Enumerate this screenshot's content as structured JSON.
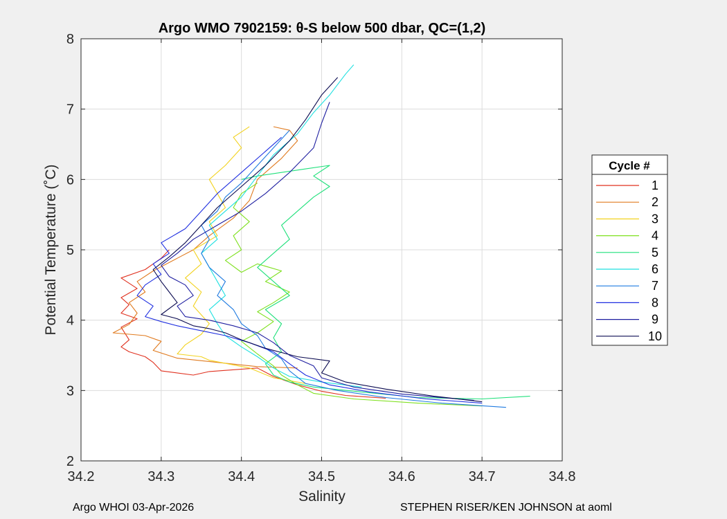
{
  "chart_data": {
    "type": "line",
    "title": "Argo WMO 7902159: θ-S below 500 dbar,  QC=(1,2)",
    "xlabel": "Salinity",
    "ylabel": "Potential Temperature (˚C)",
    "xlim": [
      34.2,
      34.8
    ],
    "ylim": [
      2,
      8
    ],
    "xticks": [
      "34.2",
      "34.3",
      "34.4",
      "34.5",
      "34.6",
      "34.7",
      "34.8"
    ],
    "yticks": [
      "2",
      "3",
      "4",
      "5",
      "6",
      "7",
      "8"
    ],
    "grid": true,
    "legend": {
      "title": "Cycle #",
      "placement": "right"
    },
    "series": [
      {
        "name": "1",
        "color": "#e0301e",
        "points": [
          [
            34.58,
            2.89
          ],
          [
            34.53,
            2.93
          ],
          [
            34.5,
            2.99
          ],
          [
            34.47,
            3.08
          ],
          [
            34.44,
            3.2
          ],
          [
            34.42,
            3.32
          ],
          [
            34.36,
            3.27
          ],
          [
            34.34,
            3.22
          ],
          [
            34.3,
            3.28
          ],
          [
            34.29,
            3.4
          ],
          [
            34.28,
            3.48
          ],
          [
            34.26,
            3.55
          ],
          [
            34.25,
            3.62
          ],
          [
            34.26,
            3.72
          ],
          [
            34.25,
            3.9
          ],
          [
            34.27,
            4.02
          ],
          [
            34.25,
            4.1
          ],
          [
            34.26,
            4.22
          ],
          [
            34.25,
            4.32
          ],
          [
            34.27,
            4.45
          ],
          [
            34.25,
            4.6
          ],
          [
            34.28,
            4.72
          ],
          [
            34.3,
            4.88
          ],
          [
            34.31,
            5.0
          ]
        ]
      },
      {
        "name": "2",
        "color": "#e07a1e",
        "points": [
          [
            34.47,
            3.32
          ],
          [
            34.42,
            3.34
          ],
          [
            34.37,
            3.4
          ],
          [
            34.32,
            3.46
          ],
          [
            34.29,
            3.57
          ],
          [
            34.3,
            3.7
          ],
          [
            34.28,
            3.78
          ],
          [
            34.24,
            3.82
          ],
          [
            34.26,
            3.94
          ],
          [
            34.27,
            4.1
          ],
          [
            34.26,
            4.25
          ],
          [
            34.28,
            4.4
          ],
          [
            34.27,
            4.55
          ],
          [
            34.29,
            4.7
          ],
          [
            34.32,
            4.88
          ],
          [
            34.34,
            5.0
          ],
          [
            34.36,
            5.2
          ],
          [
            34.39,
            5.45
          ],
          [
            34.41,
            5.7
          ],
          [
            34.42,
            6.0
          ],
          [
            34.45,
            6.3
          ],
          [
            34.47,
            6.55
          ],
          [
            34.46,
            6.7
          ],
          [
            34.44,
            6.75
          ]
        ]
      },
      {
        "name": "3",
        "color": "#f2d21e",
        "points": [
          [
            34.48,
            3.1
          ],
          [
            34.44,
            3.18
          ],
          [
            34.41,
            3.32
          ],
          [
            34.36,
            3.43
          ],
          [
            34.35,
            3.48
          ],
          [
            34.32,
            3.52
          ],
          [
            34.33,
            3.65
          ],
          [
            34.35,
            3.8
          ],
          [
            34.36,
            3.95
          ],
          [
            34.34,
            4.2
          ],
          [
            34.35,
            4.4
          ],
          [
            34.33,
            4.6
          ],
          [
            34.35,
            4.8
          ],
          [
            34.34,
            5.0
          ],
          [
            34.37,
            5.2
          ],
          [
            34.36,
            5.4
          ],
          [
            34.38,
            5.6
          ],
          [
            34.37,
            5.8
          ],
          [
            34.36,
            6.0
          ],
          [
            34.38,
            6.2
          ],
          [
            34.4,
            6.45
          ],
          [
            34.39,
            6.6
          ],
          [
            34.41,
            6.75
          ]
        ]
      },
      {
        "name": "4",
        "color": "#7ee01e",
        "points": [
          [
            34.7,
            2.78
          ],
          [
            34.62,
            2.82
          ],
          [
            34.54,
            2.88
          ],
          [
            34.49,
            2.96
          ],
          [
            34.47,
            3.08
          ],
          [
            34.45,
            3.22
          ],
          [
            34.44,
            3.35
          ],
          [
            34.42,
            3.52
          ],
          [
            34.4,
            3.7
          ],
          [
            34.42,
            3.82
          ],
          [
            34.44,
            3.98
          ],
          [
            34.42,
            4.12
          ],
          [
            34.44,
            4.25
          ],
          [
            34.46,
            4.4
          ],
          [
            34.43,
            4.55
          ],
          [
            34.45,
            4.7
          ],
          [
            34.42,
            4.8
          ],
          [
            34.4,
            4.68
          ],
          [
            34.38,
            4.85
          ],
          [
            34.4,
            5.0
          ],
          [
            34.39,
            5.2
          ],
          [
            34.41,
            5.4
          ],
          [
            34.39,
            5.6
          ],
          [
            34.4,
            5.8
          ],
          [
            34.42,
            5.95
          ]
        ]
      },
      {
        "name": "5",
        "color": "#1ee07a",
        "points": [
          [
            34.76,
            2.92
          ],
          [
            34.7,
            2.88
          ],
          [
            34.62,
            2.9
          ],
          [
            34.55,
            2.98
          ],
          [
            34.49,
            3.05
          ],
          [
            34.46,
            3.12
          ],
          [
            34.44,
            3.22
          ],
          [
            34.43,
            3.38
          ],
          [
            34.45,
            3.55
          ],
          [
            34.44,
            3.75
          ],
          [
            34.45,
            3.95
          ],
          [
            34.43,
            4.15
          ],
          [
            34.46,
            4.35
          ],
          [
            34.44,
            4.55
          ],
          [
            34.42,
            4.75
          ],
          [
            34.44,
            4.95
          ],
          [
            34.46,
            5.15
          ],
          [
            34.45,
            5.35
          ],
          [
            34.47,
            5.55
          ],
          [
            34.49,
            5.75
          ],
          [
            34.51,
            5.9
          ],
          [
            34.49,
            6.05
          ],
          [
            34.51,
            6.2
          ],
          [
            34.48,
            6.15
          ],
          [
            34.45,
            6.1
          ],
          [
            34.42,
            6.05
          ],
          [
            34.4,
            6.0
          ]
        ]
      },
      {
        "name": "6",
        "color": "#1ee0e0",
        "points": [
          [
            34.55,
            3.05
          ],
          [
            34.5,
            3.12
          ],
          [
            34.46,
            3.2
          ],
          [
            34.44,
            3.32
          ],
          [
            34.42,
            3.48
          ],
          [
            34.4,
            3.62
          ],
          [
            34.38,
            3.78
          ],
          [
            34.37,
            3.95
          ],
          [
            34.36,
            4.15
          ],
          [
            34.38,
            4.35
          ],
          [
            34.37,
            4.55
          ],
          [
            34.36,
            4.75
          ],
          [
            34.35,
            4.95
          ],
          [
            34.37,
            5.15
          ],
          [
            34.36,
            5.35
          ],
          [
            34.38,
            5.55
          ],
          [
            34.4,
            5.75
          ],
          [
            34.42,
            6.05
          ],
          [
            34.44,
            6.35
          ],
          [
            34.47,
            6.65
          ],
          [
            34.49,
            6.95
          ],
          [
            34.51,
            7.2
          ],
          [
            34.53,
            7.5
          ],
          [
            34.54,
            7.63
          ]
        ]
      },
      {
        "name": "7",
        "color": "#1e7ae0",
        "points": [
          [
            34.73,
            2.76
          ],
          [
            34.65,
            2.82
          ],
          [
            34.58,
            2.9
          ],
          [
            34.52,
            3.0
          ],
          [
            34.48,
            3.1
          ],
          [
            34.46,
            3.28
          ],
          [
            34.45,
            3.45
          ],
          [
            34.43,
            3.6
          ],
          [
            34.42,
            3.78
          ],
          [
            34.4,
            3.95
          ],
          [
            34.39,
            4.15
          ],
          [
            34.37,
            4.35
          ],
          [
            34.38,
            4.55
          ],
          [
            34.36,
            4.75
          ],
          [
            34.35,
            4.95
          ],
          [
            34.36,
            5.15
          ],
          [
            34.35,
            5.35
          ],
          [
            34.37,
            5.55
          ],
          [
            34.38,
            5.75
          ],
          [
            34.4,
            5.95
          ],
          [
            34.42,
            6.2
          ],
          [
            34.44,
            6.45
          ],
          [
            34.46,
            6.7
          ]
        ]
      },
      {
        "name": "8",
        "color": "#1e2ee0",
        "points": [
          [
            34.7,
            2.82
          ],
          [
            34.63,
            2.88
          ],
          [
            34.56,
            2.98
          ],
          [
            34.51,
            3.08
          ],
          [
            34.48,
            3.22
          ],
          [
            34.46,
            3.38
          ],
          [
            34.44,
            3.55
          ],
          [
            34.41,
            3.68
          ],
          [
            34.38,
            3.78
          ],
          [
            34.35,
            3.85
          ],
          [
            34.32,
            3.92
          ],
          [
            34.3,
            3.98
          ],
          [
            34.28,
            4.05
          ],
          [
            34.29,
            4.2
          ],
          [
            34.27,
            4.35
          ],
          [
            34.28,
            4.5
          ],
          [
            34.3,
            4.65
          ],
          [
            34.29,
            4.8
          ],
          [
            34.31,
            4.95
          ],
          [
            34.3,
            5.1
          ],
          [
            34.33,
            5.3
          ],
          [
            34.35,
            5.55
          ],
          [
            34.37,
            5.8
          ],
          [
            34.4,
            6.1
          ],
          [
            34.43,
            6.4
          ],
          [
            34.45,
            6.6
          ]
        ]
      },
      {
        "name": "9",
        "color": "#1e1ea0",
        "points": [
          [
            34.69,
            2.86
          ],
          [
            34.6,
            2.95
          ],
          [
            34.54,
            3.05
          ],
          [
            34.5,
            3.18
          ],
          [
            34.49,
            3.35
          ],
          [
            34.46,
            3.5
          ],
          [
            34.44,
            3.68
          ],
          [
            34.42,
            3.82
          ],
          [
            34.39,
            3.92
          ],
          [
            34.36,
            4.0
          ],
          [
            34.33,
            4.05
          ],
          [
            34.32,
            4.2
          ],
          [
            34.34,
            4.35
          ],
          [
            34.33,
            4.5
          ],
          [
            34.31,
            4.62
          ],
          [
            34.3,
            4.78
          ],
          [
            34.32,
            4.95
          ],
          [
            34.34,
            5.15
          ],
          [
            34.37,
            5.35
          ],
          [
            34.4,
            5.55
          ],
          [
            34.43,
            5.8
          ],
          [
            34.46,
            6.1
          ],
          [
            34.49,
            6.45
          ],
          [
            34.5,
            6.8
          ],
          [
            34.51,
            7.1
          ]
        ]
      },
      {
        "name": "10",
        "color": "#0a0a50",
        "points": [
          [
            34.7,
            2.84
          ],
          [
            34.64,
            2.92
          ],
          [
            34.58,
            3.02
          ],
          [
            34.53,
            3.12
          ],
          [
            34.5,
            3.25
          ],
          [
            34.51,
            3.42
          ],
          [
            34.47,
            3.48
          ],
          [
            34.43,
            3.6
          ],
          [
            34.4,
            3.72
          ],
          [
            34.38,
            3.82
          ],
          [
            34.36,
            3.88
          ],
          [
            34.34,
            3.92
          ],
          [
            34.32,
            4.02
          ],
          [
            34.3,
            4.08
          ],
          [
            34.32,
            4.25
          ],
          [
            34.31,
            4.4
          ],
          [
            34.3,
            4.55
          ],
          [
            34.29,
            4.72
          ],
          [
            34.31,
            4.9
          ],
          [
            34.33,
            5.1
          ],
          [
            34.35,
            5.35
          ],
          [
            34.37,
            5.6
          ],
          [
            34.4,
            5.9
          ],
          [
            34.43,
            6.2
          ],
          [
            34.46,
            6.55
          ],
          [
            34.48,
            6.85
          ],
          [
            34.5,
            7.2
          ],
          [
            34.52,
            7.45
          ]
        ]
      }
    ]
  },
  "footer": {
    "left": "Argo WHOI 03-Apr-2026",
    "right": "STEPHEN RISER/KEN JOHNSON at aoml"
  }
}
